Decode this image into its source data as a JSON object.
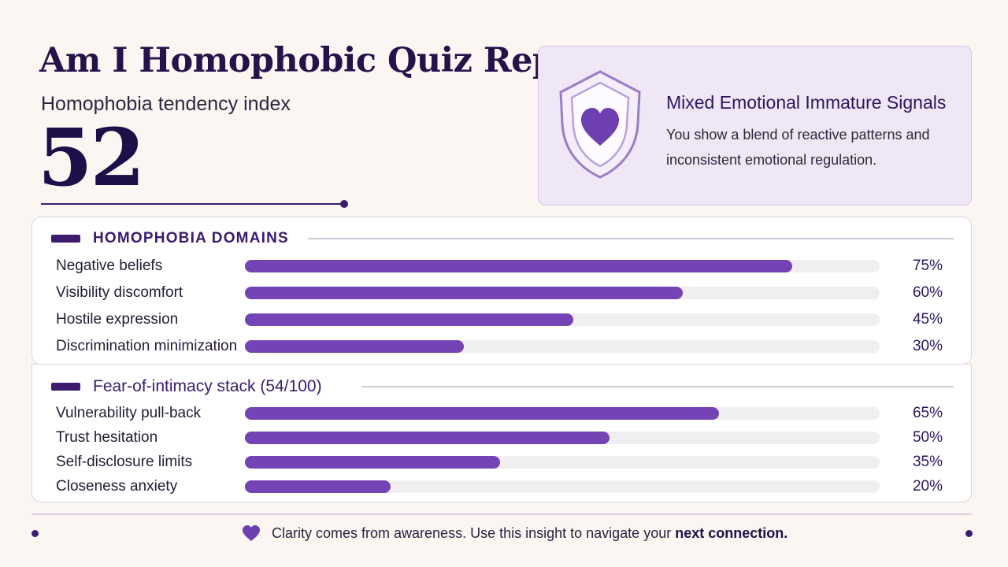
{
  "header": {
    "title": "Am I Homophobic Quiz Report",
    "subtitle": "Homophobia tendency index",
    "score": "52"
  },
  "result": {
    "icon": "shield-heart-icon",
    "title": "Mixed Emotional Immature Signals",
    "description": "You show a blend of reactive patterns and inconsistent emotional regulation."
  },
  "domains": {
    "title": "HOMOPHOBIA DOMAINS",
    "rows": [
      {
        "label": "Negative beliefs",
        "value": 75,
        "pct": "75%"
      },
      {
        "label": "Visibility discomfort",
        "value": 60,
        "pct": "60%"
      },
      {
        "label": "Hostile expression",
        "value": 45,
        "pct": "45%"
      },
      {
        "label": "Discrimination minimization",
        "value": 30,
        "pct": "30%"
      }
    ]
  },
  "intimacy": {
    "title": "Fear-of-intimacy stack (54/100)",
    "rows": [
      {
        "label": "Vulnerability pull-back",
        "value": 65,
        "pct": "65%"
      },
      {
        "label": "Trust hesitation",
        "value": 50,
        "pct": "50%"
      },
      {
        "label": "Self-disclosure limits",
        "value": 35,
        "pct": "35%"
      },
      {
        "label": "Closeness anxiety",
        "value": 20,
        "pct": "20%"
      }
    ]
  },
  "footer": {
    "icon": "heart-icon",
    "text": "Clarity comes from awareness. Use this insight to navigate your",
    "bold": "next connection."
  },
  "colors": {
    "accent": "#7544b4",
    "dark": "#24124a",
    "card_bg": "#efe6f6",
    "track": "#f1eef1"
  }
}
